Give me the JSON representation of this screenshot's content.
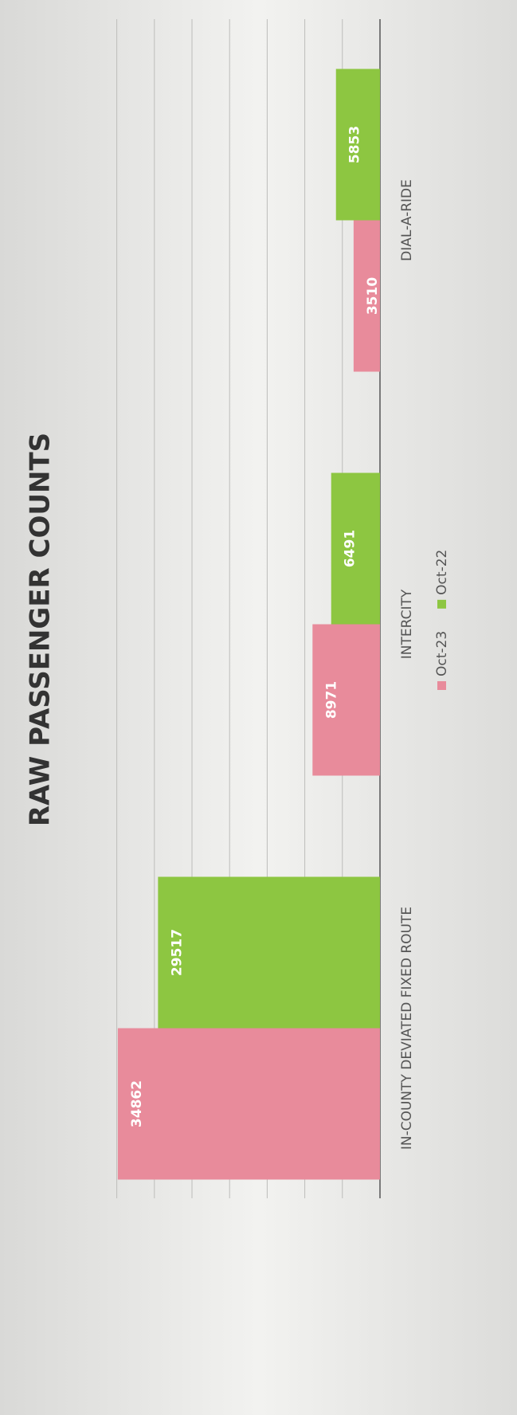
{
  "chart_data": {
    "type": "bar",
    "title": "RAW PASSENGER COUNTS",
    "categories": [
      "IN-COUNTY DEVIATED FIXED ROUTE",
      "INTERCITY",
      "DIAL-A-RIDE"
    ],
    "series": [
      {
        "name": "Oct-23",
        "color": "#e88b9b",
        "values": [
          34862,
          8971,
          3510
        ]
      },
      {
        "name": "Oct-22",
        "color": "#8dc641",
        "values": [
          29517,
          6491,
          5853
        ]
      }
    ],
    "ylim": [
      0,
      40000
    ],
    "yticks": [
      0,
      5000,
      10000,
      15000,
      20000,
      25000,
      30000,
      35000
    ],
    "grid": true
  }
}
